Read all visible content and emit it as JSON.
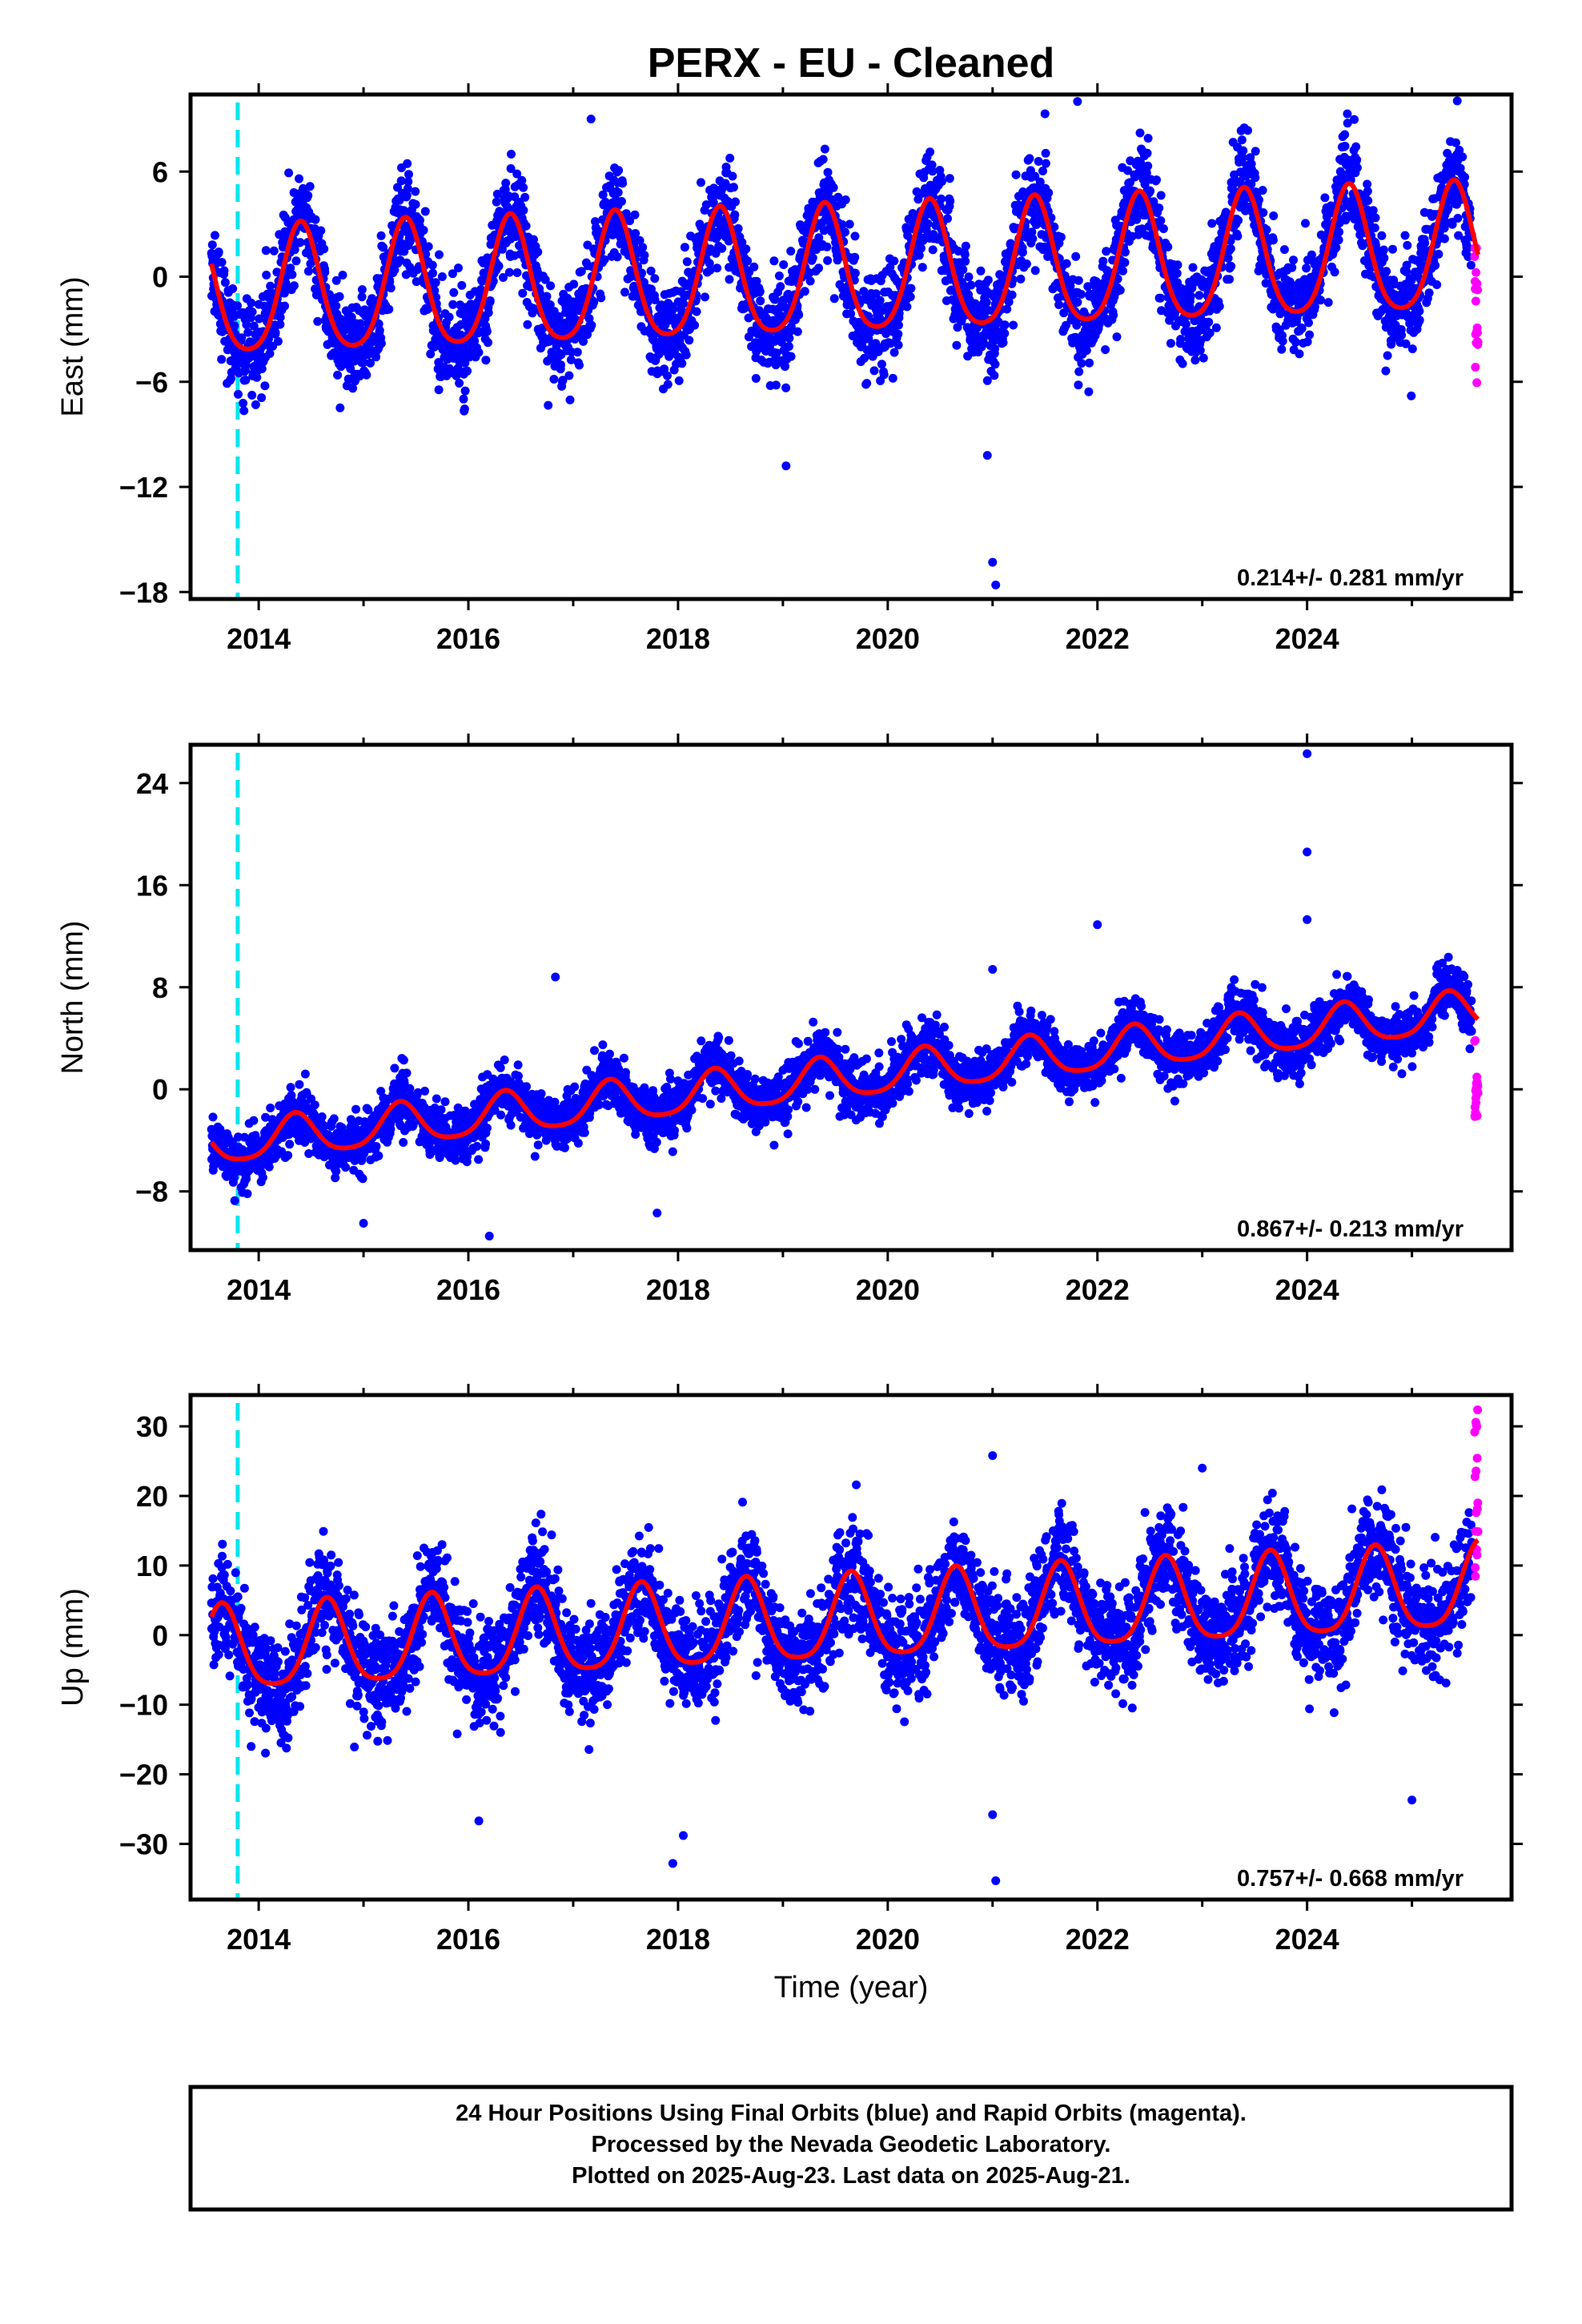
{
  "title": "PERX  - EU - Cleaned",
  "colors": {
    "final_orbits": "#0000ff",
    "rapid_orbits": "#ff00ff",
    "model_fit": "#ff0000",
    "event_marker": "#00e5ee",
    "frame": "#000000"
  },
  "chart_data": [
    {
      "type": "scatter",
      "name": "east",
      "ylabel": "East (mm)",
      "xlabel": "",
      "xlim": [
        2013.35,
        2025.95
      ],
      "ylim": [
        -18.4,
        10.4
      ],
      "yticks": [
        6,
        0,
        -6,
        -12,
        -18
      ],
      "ytick_labels": [
        "6",
        "0",
        "−6",
        "−12",
        "−18"
      ],
      "xticks": [
        2014,
        2016,
        2018,
        2020,
        2022,
        2024
      ],
      "event_marker_x": 2013.8,
      "rate_label": "0.214+/- 0.281 mm/yr",
      "model": {
        "start": 2013.55,
        "end": 2025.63,
        "offset": -1.2,
        "trend": 0.214,
        "annual_amp": 3.6,
        "annual_peak": 0.4,
        "semi_amp": 0.6,
        "noise_sd": 1.7
      },
      "rapid": {
        "start": 2025.55,
        "end": 2025.63,
        "values_range": [
          -6.2,
          2.8
        ]
      },
      "outliers": [
        [
          2017.17,
          9.0
        ],
        [
          2019.03,
          -10.8
        ],
        [
          2020.95,
          -10.2
        ],
        [
          2021.0,
          -16.3
        ],
        [
          2021.03,
          -17.6
        ],
        [
          2021.81,
          10.0
        ],
        [
          2021.5,
          9.3
        ],
        [
          2023.4,
          8.5
        ]
      ]
    },
    {
      "type": "scatter",
      "name": "north",
      "ylabel": "North (mm)",
      "xlabel": "",
      "xlim": [
        2013.35,
        2025.95
      ],
      "ylim": [
        -12.6,
        27.0
      ],
      "yticks": [
        24,
        16,
        8,
        0,
        -8
      ],
      "ytick_labels": [
        "24",
        "16",
        "8",
        "0",
        "−8"
      ],
      "xticks": [
        2014,
        2016,
        2018,
        2020,
        2022,
        2024
      ],
      "event_marker_x": 2013.8,
      "rate_label": "0.867+/- 0.213 mm/yr",
      "model": {
        "start": 2013.55,
        "end": 2025.63,
        "offset": -4.4,
        "trend": 0.867,
        "annual_amp": 1.6,
        "annual_peak": 0.35,
        "semi_amp": 0.3,
        "noise_sd": 1.3
      },
      "rapid": {
        "start": 2025.55,
        "end": 2025.63,
        "values_range": [
          -2.3,
          5.0
        ]
      },
      "outliers": [
        [
          2016.2,
          -11.5
        ],
        [
          2016.83,
          8.8
        ],
        [
          2017.8,
          -9.7
        ],
        [
          2022.0,
          12.9
        ],
        [
          2024.0,
          13.3
        ],
        [
          2024.0,
          18.6
        ],
        [
          2024.0,
          26.3
        ],
        [
          2015.0,
          -10.5
        ],
        [
          2021.0,
          9.4
        ]
      ]
    },
    {
      "type": "scatter",
      "name": "up",
      "ylabel": "Up (mm)",
      "xlabel": "Time (year)",
      "xlim": [
        2013.35,
        2025.95
      ],
      "ylim": [
        -38.0,
        34.5
      ],
      "yticks": [
        30,
        20,
        10,
        0,
        -10,
        -20,
        -30
      ],
      "ytick_labels": [
        "30",
        "20",
        "10",
        "0",
        "−10",
        "−20",
        "−30"
      ],
      "xticks": [
        2014,
        2016,
        2018,
        2020,
        2022,
        2024
      ],
      "event_marker_x": 2013.8,
      "rate_label": "0.757+/- 0.668 mm/yr",
      "model": {
        "start": 2013.55,
        "end": 2025.63,
        "offset": -2.6,
        "trend": 0.757,
        "annual_amp": 6.0,
        "annual_peak": 0.65,
        "semi_amp": 1.2,
        "noise_sd": 4.5
      },
      "rapid": {
        "start": 2025.55,
        "end": 2025.63,
        "values_range": [
          8.0,
          33.0
        ]
      },
      "outliers": [
        [
          2017.95,
          -32.8
        ],
        [
          2018.05,
          -28.8
        ],
        [
          2021.03,
          -35.3
        ],
        [
          2021.0,
          -25.8
        ],
        [
          2021.0,
          25.8
        ],
        [
          2016.1,
          -26.7
        ],
        [
          2023.0,
          24.0
        ],
        [
          2019.7,
          21.6
        ],
        [
          2025.0,
          -23.7
        ]
      ]
    }
  ],
  "footer": {
    "lines": [
      "24 Hour Positions Using Final Orbits (blue) and Rapid Orbits (magenta).",
      "Processed by the Nevada Geodetic Laboratory.",
      "Plotted on 2025-Aug-23. Last data on 2025-Aug-21."
    ]
  }
}
